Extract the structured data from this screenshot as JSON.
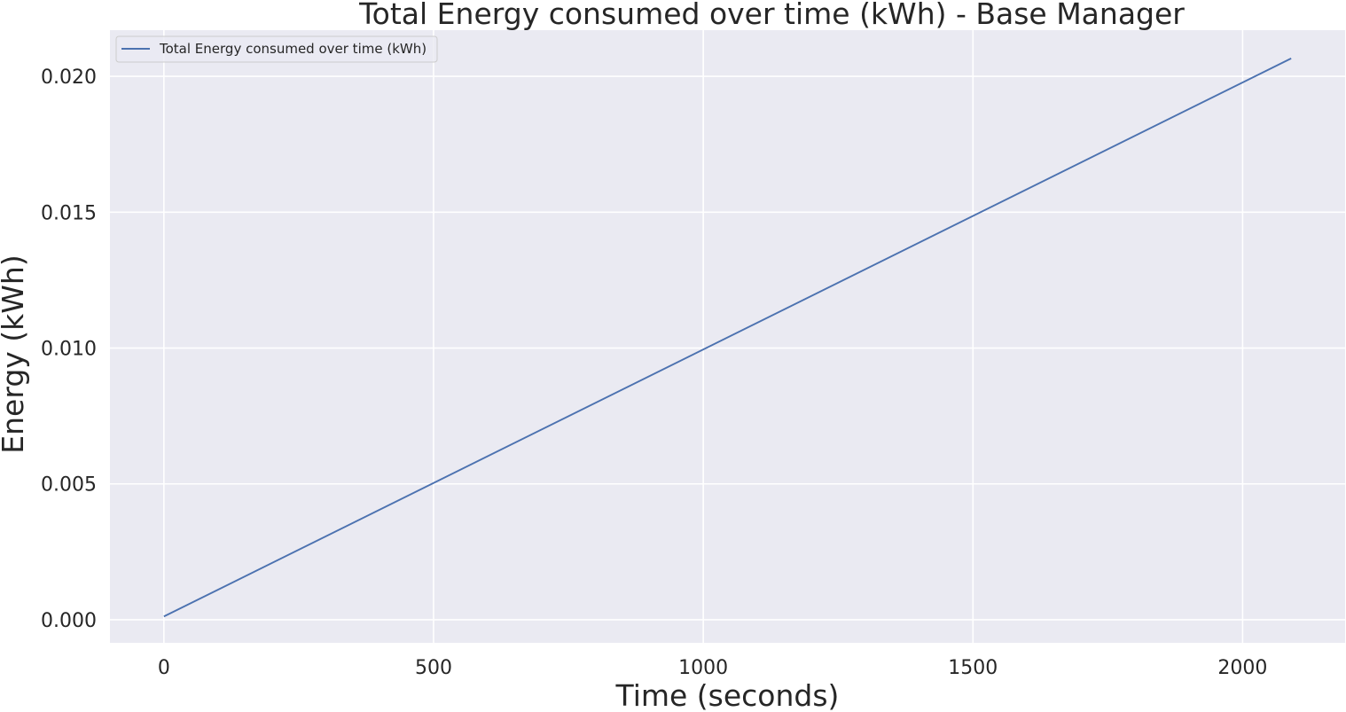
{
  "chart_data": {
    "type": "line",
    "title": "Total Energy consumed over time (kWh) - Base Manager",
    "xlabel": "Time (seconds)",
    "ylabel": "Energy (kWh)",
    "xlim": [
      -100,
      2190
    ],
    "ylim": [
      -0.00085,
      0.0217
    ],
    "x_ticks": [
      0,
      500,
      1000,
      1500,
      2000
    ],
    "y_ticks": [
      0.0,
      0.005,
      0.01,
      0.015,
      0.02
    ],
    "x_tick_labels": [
      "0",
      "500",
      "1000",
      "1500",
      "2000"
    ],
    "y_tick_labels": [
      "0.000",
      "0.005",
      "0.010",
      "0.015",
      "0.020"
    ],
    "grid": true,
    "legend_position": "top-left",
    "series": [
      {
        "name": "Total Energy consumed over time (kWh)",
        "color": "#4c72b0",
        "x": [
          0,
          2090
        ],
        "y": [
          0.00012,
          0.02066
        ]
      }
    ]
  },
  "colors": {
    "plot_background": "#eaeaf2",
    "grid": "#ffffff",
    "text": "#262626"
  }
}
